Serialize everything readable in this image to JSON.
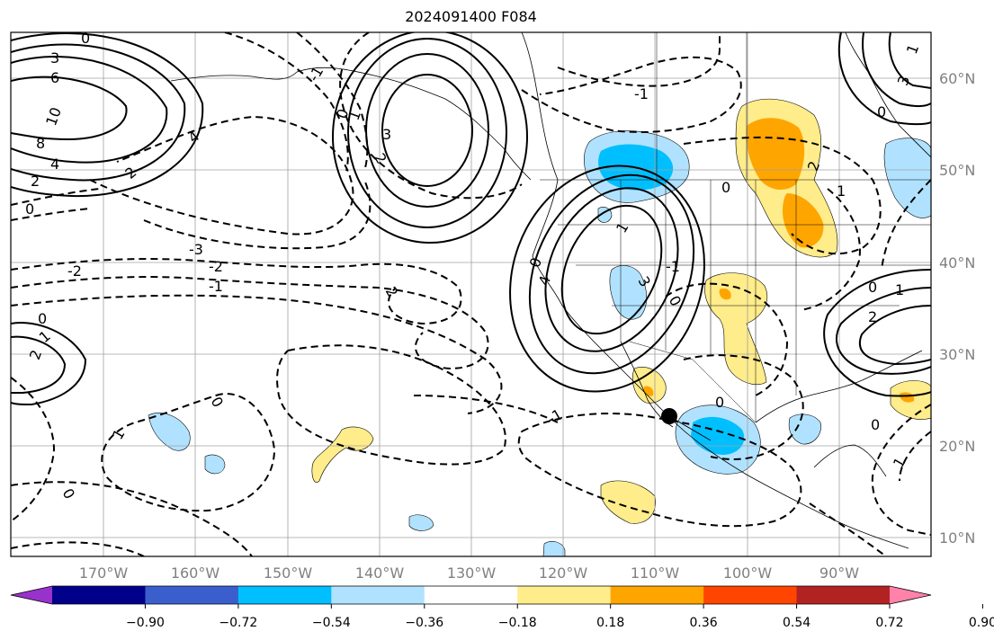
{
  "title": "2024091400 F084",
  "lon_labels": [
    "170°W",
    "160°W",
    "150°W",
    "140°W",
    "130°W",
    "120°W",
    "110°W",
    "100°W",
    "90°W"
  ],
  "lat_labels": [
    "10°N",
    "20°N",
    "30°N",
    "40°N",
    "50°N",
    "60°N"
  ],
  "colorbar": {
    "colors": [
      "#9932cc",
      "#00008b",
      "#3a5fcd",
      "#00bfff",
      "#b0e2ff",
      "#ffffff",
      "#ffec8b",
      "#ffa500",
      "#ff4500",
      "#b22222",
      "#ff82ab"
    ],
    "labels": [
      "−0.90",
      "−0.72",
      "−0.54",
      "−0.36",
      "−0.18",
      "0.18",
      "0.36",
      "0.54",
      "0.72",
      "0.90"
    ]
  },
  "contour_labels": {
    "alaska_ridge": [
      "0",
      "1",
      "2",
      "3"
    ],
    "west_pacific_high": [
      "3",
      "6",
      "8",
      "10",
      "4",
      "2",
      "0"
    ],
    "west_trough": [
      "4",
      "3",
      "2",
      "1",
      "0"
    ],
    "central_pacific": [
      "-3",
      "-2",
      "-1",
      "-2"
    ],
    "misc": [
      "0",
      "-1",
      "-1",
      "0",
      "0",
      "-1",
      "0",
      "1",
      "-1",
      "0",
      "1",
      "-1",
      "2",
      "-1",
      "0",
      "1",
      "0",
      "1",
      "2",
      "3",
      "-1",
      "-1"
    ]
  },
  "marker": {
    "label": "",
    "lon": -108.5,
    "lat": 23.2
  }
}
